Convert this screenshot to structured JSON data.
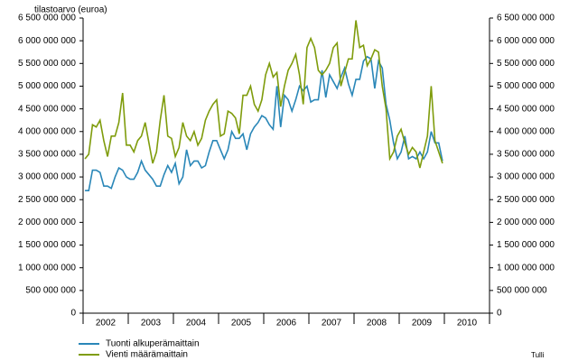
{
  "chart_data": {
    "type": "line",
    "y_label": "tilastoarvo (euroa)",
    "source": "Tulli",
    "categories": [
      null,
      null,
      null,
      null,
      null,
      null,
      "2002",
      null,
      null,
      null,
      null,
      null,
      null,
      null,
      null,
      null,
      null,
      null,
      "2003",
      null,
      null,
      null,
      null,
      null,
      null,
      null,
      null,
      null,
      null,
      null,
      "2004",
      null,
      null,
      null,
      null,
      null,
      null,
      null,
      null,
      null,
      null,
      null,
      "2005",
      null,
      null,
      null,
      null,
      null,
      null,
      null,
      null,
      null,
      null,
      null,
      "2006",
      null,
      null,
      null,
      null,
      null,
      null,
      null,
      null,
      null,
      null,
      null,
      "2007",
      null,
      null,
      null,
      null,
      null,
      null,
      null,
      null,
      null,
      null,
      null,
      "2008",
      null,
      null,
      null,
      null,
      null,
      null,
      null,
      null,
      null,
      null,
      null,
      "2009",
      null,
      null,
      null,
      null,
      null,
      null,
      null,
      null,
      null,
      null,
      null,
      "2010",
      null,
      null,
      null,
      null,
      null
    ],
    "series": [
      {
        "name": "Tuonti alkuperämaittain",
        "color": "#2a87b8",
        "values": [
          2700000000.0,
          2700000000.0,
          3150000000.0,
          3150000000.0,
          3100000000.0,
          2800000000.0,
          2800000000.0,
          2750000000.0,
          3000000000.0,
          3200000000.0,
          3150000000.0,
          3000000000.0,
          2950000000.0,
          2950000000.0,
          3100000000.0,
          3350000000.0,
          3150000000.0,
          3050000000.0,
          2950000000.0,
          2800000000.0,
          2800000000.0,
          3050000000.0,
          3250000000.0,
          3100000000.0,
          3300000000.0,
          2850000000.0,
          3000000000.0,
          3600000000.0,
          3250000000.0,
          3350000000.0,
          3350000000.0,
          3200000000.0,
          3250000000.0,
          3550000000.0,
          3800000000.0,
          3800000000.0,
          3600000000.0,
          3400000000.0,
          3600000000.0,
          4000000000.0,
          3850000000.0,
          3850000000.0,
          3950000000.0,
          3600000000.0,
          3950000000.0,
          4100000000.0,
          4200000000.0,
          4350000000.0,
          4300000000.0,
          4150000000.0,
          4050000000.0,
          5000000000.0,
          4100000000.0,
          4800000000.0,
          4700000000.0,
          4450000000.0,
          4700000000.0,
          5000000000.0,
          4900000000.0,
          5000000000.0,
          4650000000.0,
          4700000000.0,
          4700000000.0,
          5350000000.0,
          4750000000.0,
          5250000000.0,
          5100000000.0,
          4950000000.0,
          5200000000.0,
          5400000000.0,
          5050000000.0,
          4800000000.0,
          5150000000.0,
          5150000000.0,
          5550000000.0,
          5650000000.0,
          5600000000.0,
          4950000000.0,
          5550000000.0,
          5400000000.0,
          4600000000.0,
          4250000000.0,
          3750000000.0,
          3400000000.0,
          3550000000.0,
          3900000000.0,
          3400000000.0,
          3450000000.0,
          3400000000.0,
          3550000000.0,
          3400000000.0,
          3550000000.0,
          4000000000.0,
          3750000000.0,
          3750000000.0,
          3350000000.0,
          null,
          null,
          null,
          null,
          null,
          null,
          null,
          null,
          null,
          null,
          null,
          null
        ]
      },
      {
        "name": "Vienti määrämaittain",
        "color": "#7f9c0c",
        "values": [
          3400000000.0,
          3500000000.0,
          4150000000.0,
          4100000000.0,
          4250000000.0,
          3800000000.0,
          3450000000.0,
          3900000000.0,
          3900000000.0,
          4200000000.0,
          4850000000.0,
          3700000000.0,
          3700000000.0,
          3550000000.0,
          3800000000.0,
          3900000000.0,
          4200000000.0,
          3750000000.0,
          3300000000.0,
          3550000000.0,
          4250000000.0,
          4800000000.0,
          3900000000.0,
          3850000000.0,
          3450000000.0,
          3650000000.0,
          4200000000.0,
          3900000000.0,
          3800000000.0,
          4000000000.0,
          3700000000.0,
          3850000000.0,
          4250000000.0,
          4450000000.0,
          4600000000.0,
          4700000000.0,
          3900000000.0,
          3950000000.0,
          4450000000.0,
          4400000000.0,
          4300000000.0,
          3950000000.0,
          4800000000.0,
          4800000000.0,
          5000000000.0,
          4600000000.0,
          4450000000.0,
          4700000000.0,
          5250000000.0,
          5500000000.0,
          5200000000.0,
          5300000000.0,
          4550000000.0,
          5000000000.0,
          5350000000.0,
          5500000000.0,
          5700000000.0,
          5250000000.0,
          4600000000.0,
          5850000000.0,
          6050000000.0,
          5850000000.0,
          5350000000.0,
          5250000000.0,
          5350000000.0,
          5500000000.0,
          5850000000.0,
          5950000000.0,
          5000000000.0,
          5300000000.0,
          5600000000.0,
          5600000000.0,
          6450000000.0,
          5850000000.0,
          5900000000.0,
          5450000000.0,
          5600000000.0,
          5800000000.0,
          5750000000.0,
          5000000000.0,
          4500000000.0,
          3400000000.0,
          3550000000.0,
          3900000000.0,
          4050000000.0,
          3750000000.0,
          3500000000.0,
          3650000000.0,
          3550000000.0,
          3200000000.0,
          3550000000.0,
          3900000000.0,
          5000000000.0,
          3800000000.0,
          3550000000.0,
          3300000000.0,
          null,
          null,
          null,
          null,
          null,
          null,
          null,
          null,
          null,
          null,
          null,
          null
        ]
      }
    ],
    "ylim": [
      0,
      6500000000
    ],
    "yticks": [
      0,
      {
        "value": 500000000,
        "label": "500 000 000"
      },
      {
        "value": 1000000000,
        "label": "1 000 000 000"
      },
      {
        "value": 1500000000,
        "label": "1 500 000 000"
      },
      {
        "value": 2000000000,
        "label": "2 000 000 000"
      },
      {
        "value": 2500000000,
        "label": "2 500 000 000"
      },
      {
        "value": 3000000000,
        "label": "3 000 000 000"
      },
      {
        "value": 3500000000,
        "label": "3 500 000 000"
      },
      {
        "value": 4000000000,
        "label": "4 000 000 000"
      },
      {
        "value": 4500000000,
        "label": "4 500 000 000"
      },
      {
        "value": 5000000000,
        "label": "5 000 000 000"
      },
      {
        "value": 5500000000,
        "label": "5 500 000 000"
      },
      {
        "value": 6000000000,
        "label": "6 000 000 000"
      },
      {
        "value": 6500000000,
        "label": "6 500 000 000"
      }
    ],
    "y2lim": [
      0,
      6500000000
    ],
    "y2ticks": [
      0,
      {
        "value": 500000000,
        "label": "500 000 000"
      },
      {
        "value": 1000000000,
        "label": "1 000 000 000"
      },
      {
        "value": 1500000000,
        "label": "1 500 000 000"
      },
      {
        "value": 2000000000,
        "label": "2 000 000 000"
      },
      {
        "value": 2500000000,
        "label": "2 500 000 000"
      },
      {
        "value": 3000000000,
        "label": "3 000 000 000"
      },
      {
        "value": 3500000000,
        "label": "3 500 000 000"
      },
      {
        "value": 4000000000,
        "label": "4 000 000 000"
      },
      {
        "value": 4500000000,
        "label": "4 500 000 000"
      },
      {
        "value": 5000000000,
        "label": "5 000 000 000"
      },
      {
        "value": 5500000000,
        "label": "5 500 000 000"
      },
      {
        "value": 6000000000,
        "label": "6 000 000 000"
      },
      {
        "value": 6500000000,
        "label": "6 500 000 000"
      }
    ],
    "grid": false
  }
}
